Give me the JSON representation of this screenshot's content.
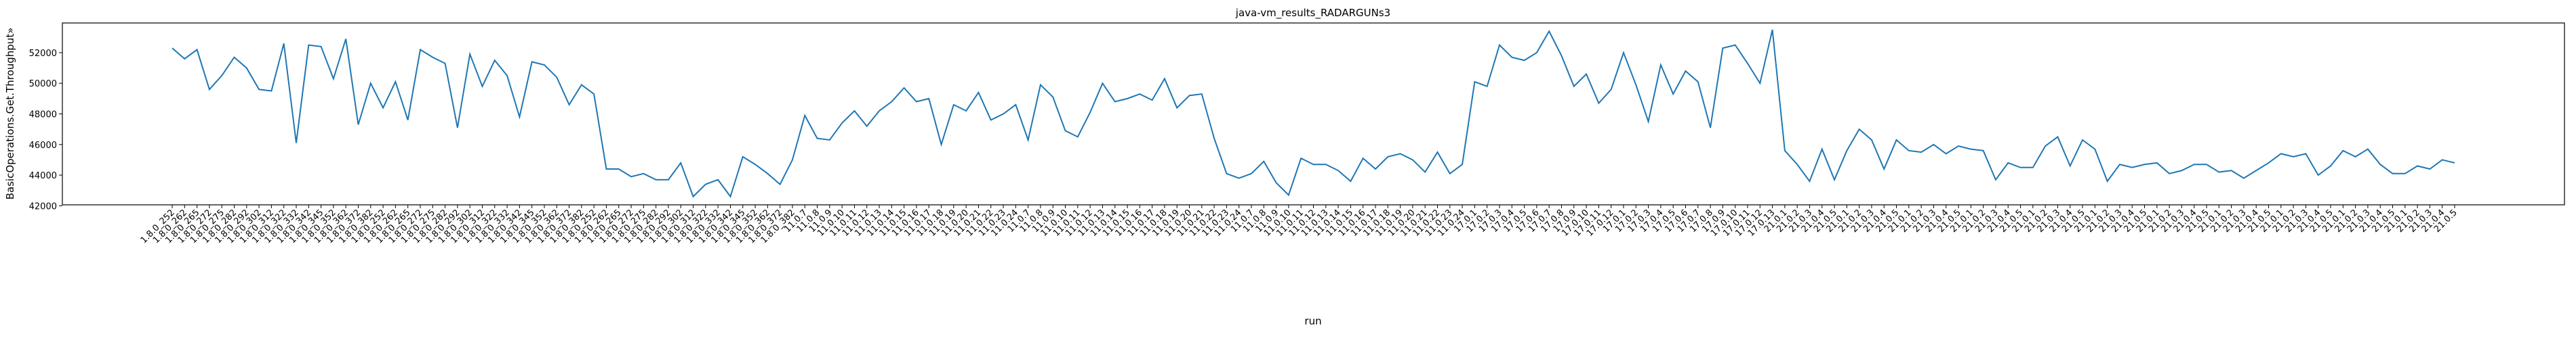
{
  "chart_data": {
    "type": "line",
    "title": "java-vm_results_RADARGUNs3",
    "xlabel": "run",
    "ylabel": "BasicOperations.Get.Throughput»",
    "categories": [
      "1.8.0_252",
      "1.8.0_262",
      "1.8.0_265",
      "1.8.0_272",
      "1.8.0_275",
      "1.8.0_282",
      "1.8.0_292",
      "1.8.0_302",
      "1.8.0_312",
      "1.8.0_322",
      "1.8.0_332",
      "1.8.0_342",
      "1.8.0_345",
      "1.8.0_352",
      "1.8.0_362",
      "1.8.0_372",
      "1.8.0_382",
      "1.8.0_252",
      "1.8.0_262",
      "1.8.0_265",
      "1.8.0_272",
      "1.8.0_275",
      "1.8.0_282",
      "1.8.0_292",
      "1.8.0_302",
      "1.8.0_312",
      "1.8.0_322",
      "1.8.0_332",
      "1.8.0_342",
      "1.8.0_345",
      "1.8.0_352",
      "1.8.0_362",
      "1.8.0_372",
      "1.8.0_382",
      "1.8.0_252",
      "1.8.0_262",
      "1.8.0_265",
      "1.8.0_272",
      "1.8.0_275",
      "1.8.0_282",
      "1.8.0_292",
      "1.8.0_302",
      "1.8.0_312",
      "1.8.0_322",
      "1.8.0_332",
      "1.8.0_342",
      "1.8.0_345",
      "1.8.0_352",
      "1.8.0_362",
      "1.8.0_372",
      "1.8.0_382",
      "11.0.7",
      "11.0.8",
      "11.0.9",
      "11.0.10",
      "11.0.11",
      "11.0.12",
      "11.0.13",
      "11.0.14",
      "11.0.15",
      "11.0.16",
      "11.0.17",
      "11.0.18",
      "11.0.19",
      "11.0.20",
      "11.0.21",
      "11.0.22",
      "11.0.23",
      "11.0.24",
      "11.0.7",
      "11.0.8",
      "11.0.9",
      "11.0.10",
      "11.0.11",
      "11.0.12",
      "11.0.13",
      "11.0.14",
      "11.0.15",
      "11.0.16",
      "11.0.17",
      "11.0.18",
      "11.0.19",
      "11.0.20",
      "11.0.21",
      "11.0.22",
      "11.0.23",
      "11.0.24",
      "11.0.7",
      "11.0.8",
      "11.0.9",
      "11.0.10",
      "11.0.11",
      "11.0.12",
      "11.0.13",
      "11.0.14",
      "11.0.15",
      "11.0.16",
      "11.0.17",
      "11.0.18",
      "11.0.19",
      "11.0.20",
      "11.0.21",
      "11.0.22",
      "11.0.23",
      "11.0.24",
      "17.0.1",
      "17.0.2",
      "17.0.3",
      "17.0.4",
      "17.0.5",
      "17.0.6",
      "17.0.7",
      "17.0.8",
      "17.0.9",
      "17.0.10",
      "17.0.11",
      "17.0.12",
      "17.0.1",
      "17.0.2",
      "17.0.3",
      "17.0.4",
      "17.0.5",
      "17.0.6",
      "17.0.7",
      "17.0.8",
      "17.0.9",
      "17.0.10",
      "17.0.11",
      "17.0.12",
      "17.0.13",
      "21.0.1",
      "21.0.2",
      "21.0.3",
      "21.0.4",
      "21.0.5",
      "21.0.1",
      "21.0.2",
      "21.0.3",
      "21.0.4",
      "21.0.5",
      "21.0.1",
      "21.0.2",
      "21.0.3",
      "21.0.4",
      "21.0.5",
      "21.0.1",
      "21.0.2",
      "21.0.3",
      "21.0.4",
      "21.0.5",
      "21.0.1",
      "21.0.2",
      "21.0.3",
      "21.0.4",
      "21.0.5",
      "21.0.1",
      "21.0.2",
      "21.0.3",
      "21.0.4",
      "21.0.5",
      "21.0.1",
      "21.0.2",
      "21.0.3",
      "21.0.4",
      "21.0.5",
      "21.0.1",
      "21.0.2",
      "21.0.3",
      "21.0.4",
      "21.0.5",
      "21.0.1",
      "21.0.2",
      "21.0.3",
      "21.0.4",
      "21.0.5",
      "21.0.1",
      "21.0.2",
      "21.0.3",
      "21.0.4",
      "21.0.5",
      "21.0.1",
      "21.0.2",
      "21.0.3",
      "21.0.4",
      "21.0.5"
    ],
    "series": [
      {
        "color": "#1f77b4",
        "values": [
          52300,
          51600,
          52200,
          49600,
          50500,
          51700,
          51000,
          49600,
          49500,
          52600,
          46100,
          52500,
          52400,
          50300,
          52900,
          47300,
          50000,
          48400,
          50100,
          47600,
          52200,
          51700,
          51300,
          47100,
          51900,
          49800,
          51500,
          50500,
          47800,
          51400,
          51200,
          50400,
          48600,
          49900,
          49300,
          44400,
          44400,
          43900,
          44100,
          43700,
          43700,
          44800,
          42600,
          43400,
          43700,
          42600,
          45200,
          44700,
          44100,
          43400,
          45000,
          47900,
          46400,
          46300,
          47400,
          48200,
          47200,
          48200,
          48800,
          49700,
          48800,
          49000,
          46000,
          48600,
          48200,
          49400,
          47600,
          48000,
          48600,
          46300,
          49900,
          49100,
          46900,
          46500,
          48100,
          50000,
          48800,
          49000,
          49300,
          48900,
          50300,
          48400,
          49200,
          49300,
          46400,
          44100,
          43800,
          44100,
          44900,
          43500,
          42700,
          45100,
          44700,
          44700,
          44300,
          43600,
          45100,
          44400,
          45200,
          45400,
          45000,
          44200,
          45500,
          44100,
          44700,
          50100,
          49800,
          52500,
          51700,
          51500,
          52000,
          53400,
          51800,
          49800,
          50600,
          48700,
          49600,
          52000,
          49900,
          47500,
          51200,
          49300,
          50800,
          50100,
          47100,
          52300,
          52500,
          51300,
          50000,
          53500,
          45600,
          44700,
          43600,
          45700,
          43700,
          45600,
          47000,
          46300,
          44400,
          46300,
          45600,
          45500,
          46000,
          45400,
          45900,
          45700,
          45600,
          43700,
          44800,
          44500,
          44500,
          45900,
          46500,
          44600,
          46300,
          45700,
          43600,
          44700,
          44500,
          44700,
          44800,
          44100,
          44300,
          44700,
          44700,
          44200,
          44300,
          43800,
          44300,
          44800,
          45400,
          45200,
          45400,
          44000,
          44600,
          45600,
          45200,
          45700,
          44700,
          44100,
          44100,
          44600,
          44400,
          45000,
          44800
        ]
      }
    ],
    "ylim": [
      42060,
      53940
    ],
    "yticks": [
      42000,
      44000,
      46000,
      48000,
      50000,
      52000
    ],
    "grid": false
  }
}
